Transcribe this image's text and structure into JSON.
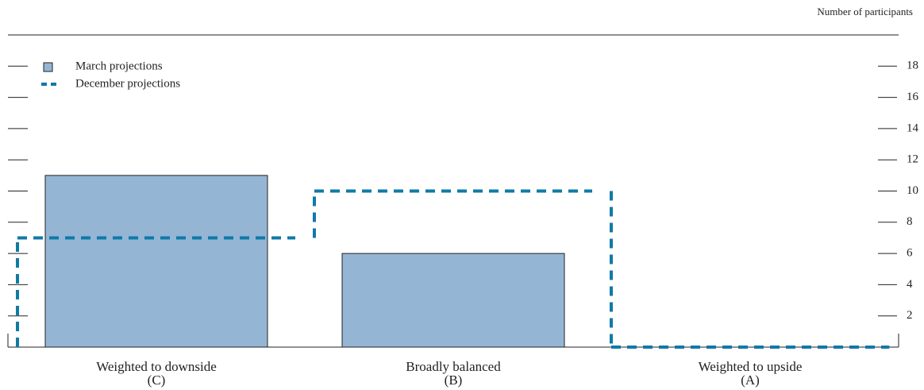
{
  "chart_data": {
    "type": "bar",
    "y_axis_label": "Number of participants",
    "categories": [
      [
        "Weighted to downside",
        "(C)"
      ],
      [
        "Broadly balanced",
        "(B)"
      ],
      [
        "Weighted to upside",
        "(A)"
      ]
    ],
    "series": [
      {
        "name": "March projections",
        "color": "#95b5d5",
        "values": [
          11,
          6,
          0
        ]
      },
      {
        "name": "December projections",
        "color": "#0f7aa8",
        "values": [
          7,
          10,
          0
        ]
      }
    ],
    "ylim": [
      0,
      20
    ],
    "yticks": [
      2,
      4,
      6,
      8,
      10,
      12,
      14,
      16,
      18
    ]
  }
}
